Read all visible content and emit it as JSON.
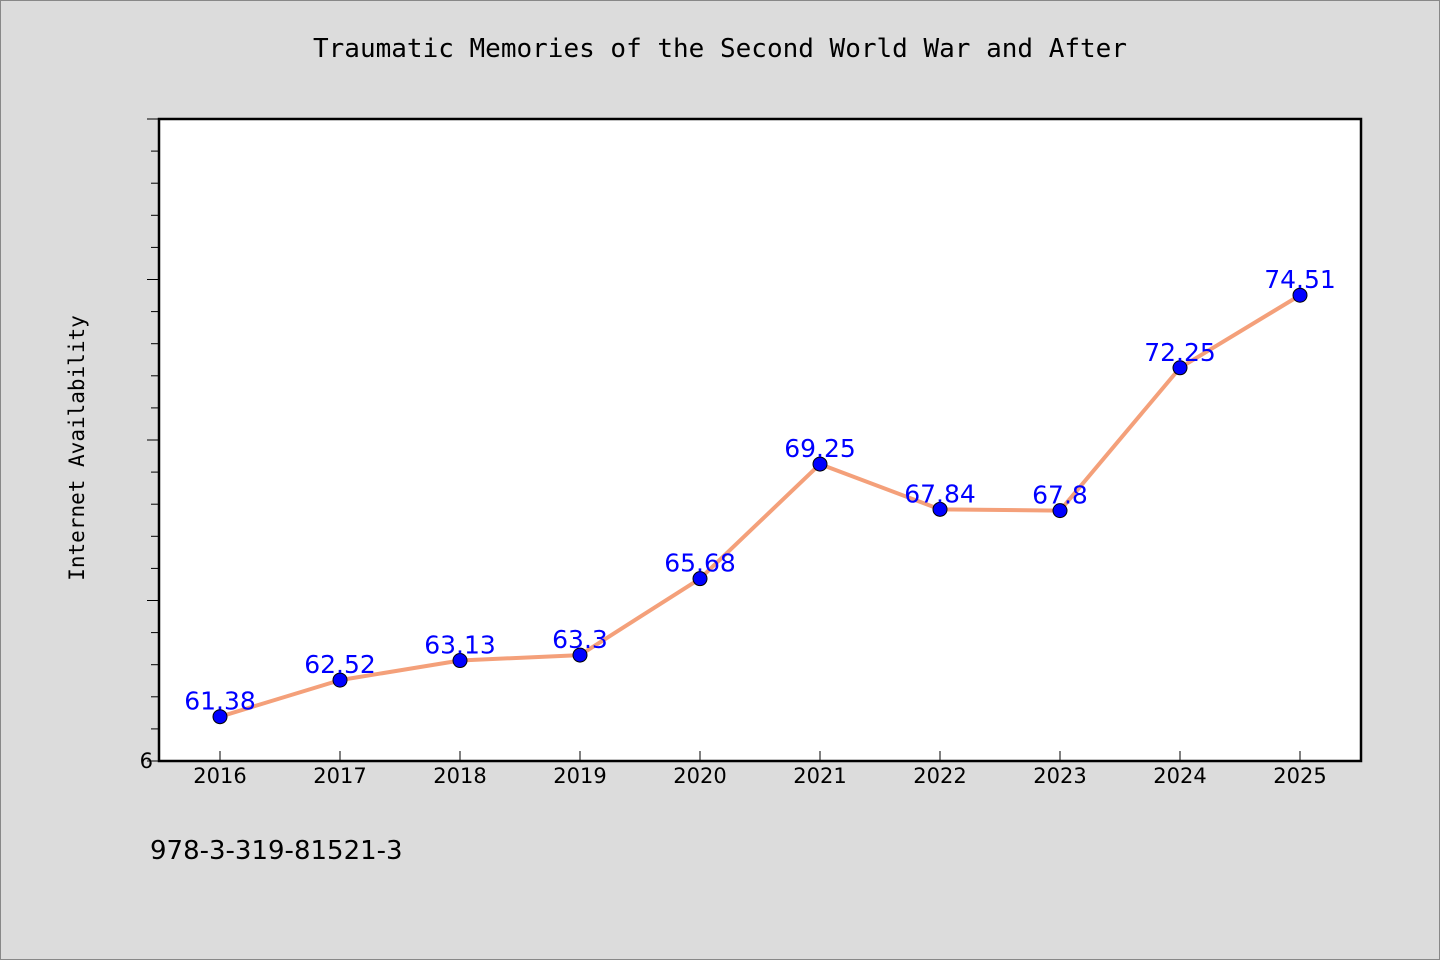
{
  "page": {
    "background": "#dcdcdc",
    "isbn": "978-3-319-81521-3"
  },
  "chart_data": {
    "type": "line",
    "title": "Traumatic Memories of the Second World War and After",
    "xlabel": "",
    "ylabel": "Internet Availability",
    "categories": [
      "2016",
      "2017",
      "2018",
      "2019",
      "2020",
      "2021",
      "2022",
      "2023",
      "2024",
      "2025"
    ],
    "series": [
      {
        "name": "",
        "values": [
          61.38,
          62.52,
          63.13,
          63.3,
          65.68,
          69.25,
          67.84,
          67.8,
          72.25,
          74.51
        ],
        "labels": [
          "61.38",
          "62.52",
          "63.13",
          "63.3",
          "65.68",
          "69.25",
          "67.84",
          "67.8",
          "72.25",
          "74.51"
        ],
        "line_color": "#f4a07a",
        "marker_color": "#0000ff",
        "label_color": "#0000ff"
      }
    ],
    "ylim": [
      60,
      80
    ],
    "y_tick_labels": [
      {
        "value": 60,
        "label": "6"
      }
    ],
    "y_minor_step": 1,
    "y_major_step": 5,
    "grid": false,
    "legend": "none"
  }
}
